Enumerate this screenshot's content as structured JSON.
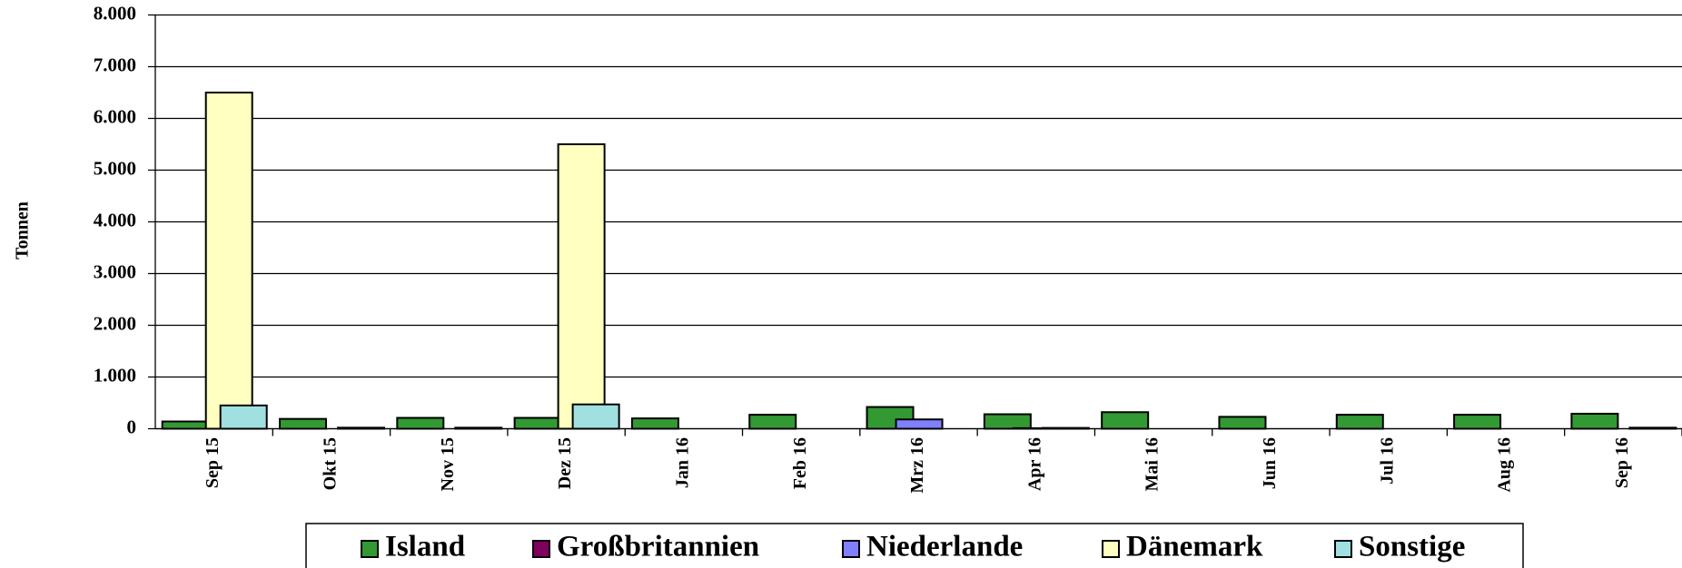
{
  "chart_data": {
    "type": "bar",
    "y_label": "Tonnen",
    "categories": [
      "Sep 15",
      "Okt 15",
      "Nov 15",
      "Dez 15",
      "Jan 16",
      "Feb 16",
      "Mrz 16",
      "Apr 16",
      "Mai 16",
      "Jun 16",
      "Jul 16",
      "Aug 16",
      "Sep 16"
    ],
    "series": [
      {
        "name": "Island",
        "color": "#339933",
        "values": [
          140,
          190,
          210,
          210,
          200,
          270,
          420,
          280,
          320,
          230,
          270,
          270,
          290
        ]
      },
      {
        "name": "Großbritannien",
        "color": "#800060",
        "values": [
          0,
          0,
          0,
          0,
          0,
          0,
          0,
          0,
          0,
          0,
          0,
          0,
          0
        ]
      },
      {
        "name": "Niederlande",
        "color": "#8080ff",
        "values": [
          0,
          0,
          0,
          0,
          0,
          0,
          180,
          10,
          0,
          0,
          0,
          0,
          0
        ]
      },
      {
        "name": "Dänemark",
        "color": "#ffffc0",
        "values": [
          6500,
          0,
          0,
          5500,
          0,
          0,
          0,
          0,
          0,
          0,
          0,
          0,
          0
        ]
      },
      {
        "name": "Sonstige",
        "color": "#a0e0e0",
        "values": [
          450,
          20,
          20,
          470,
          0,
          0,
          0,
          15,
          0,
          0,
          0,
          0,
          20
        ]
      }
    ],
    "ylim": [
      0,
      8000
    ],
    "yticks": [
      0,
      {
        "value": 1000,
        "label": "1.000"
      },
      {
        "value": 2000,
        "label": "2.000"
      },
      {
        "value": 3000,
        "label": "3.000"
      },
      {
        "value": 4000,
        "label": "4.000"
      },
      {
        "value": 5000,
        "label": "5.000"
      },
      {
        "value": 6000,
        "label": "6.000"
      },
      {
        "value": 7000,
        "label": "7.000"
      },
      {
        "value": 8000,
        "label": "8.000"
      }
    ],
    "grid": true,
    "legend": "bottom"
  }
}
